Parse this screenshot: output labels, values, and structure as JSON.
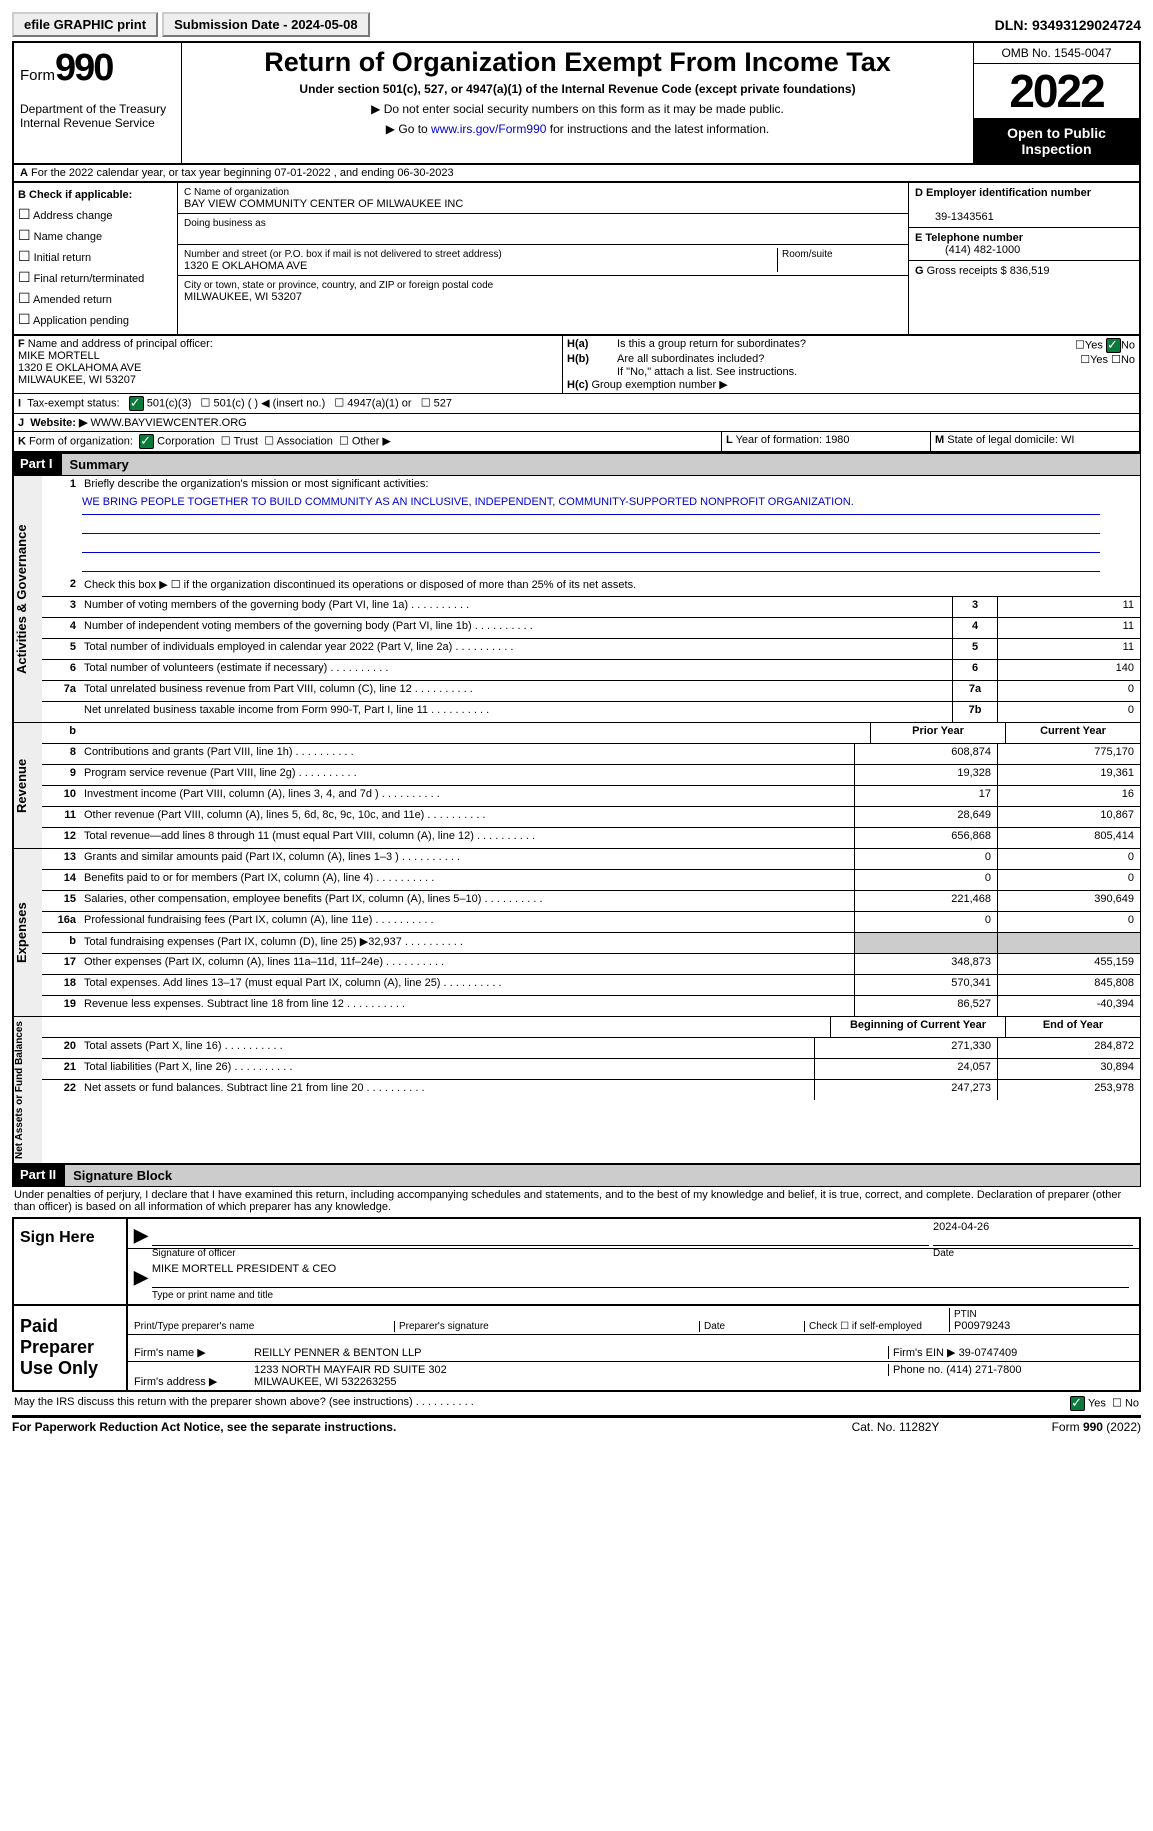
{
  "topbar": {
    "btn1": "efile GRAPHIC print",
    "btn2": "Submission Date - 2024-05-08",
    "dln": "DLN: 93493129024724"
  },
  "header": {
    "form_prefix": "Form",
    "form_num": "990",
    "dept": "Department of the Treasury\nInternal Revenue Service",
    "title": "Return of Organization Exempt From Income Tax",
    "sub": "Under section 501(c), 527, or 4947(a)(1) of the Internal Revenue Code (except private foundations)",
    "note1": "▶ Do not enter social security numbers on this form as it may be made public.",
    "note2_pre": "▶ Go to ",
    "note2_link": "www.irs.gov/Form990",
    "note2_post": " for instructions and the latest information.",
    "omb": "OMB No. 1545-0047",
    "year": "2022",
    "open": "Open to Public Inspection"
  },
  "period": {
    "a": "A",
    "text": " For the 2022 calendar year, or tax year beginning 07-01-2022   , and ending 06-30-2023"
  },
  "box_b": {
    "hdr": "B Check if applicable:",
    "items": [
      "Address change",
      "Name change",
      "Initial return",
      "Final return/terminated",
      "Amended return",
      "Application pending"
    ]
  },
  "box_c": {
    "name_label": "C Name of organization",
    "name": "BAY VIEW COMMUNITY CENTER OF MILWAUKEE INC",
    "dba_label": "Doing business as",
    "street_label": "Number and street (or P.O. box if mail is not delivered to street address)",
    "room_label": "Room/suite",
    "street": "1320 E OKLAHOMA AVE",
    "city_label": "City or town, state or province, country, and ZIP or foreign postal code",
    "city": "MILWAUKEE, WI  53207"
  },
  "box_d": {
    "label": "D Employer identification number",
    "val": "39-1343561"
  },
  "box_e": {
    "label": "E Telephone number",
    "val": "(414) 482-1000"
  },
  "box_g": {
    "label": "G",
    "text": "Gross receipts $ 836,519"
  },
  "box_f": {
    "label": "F",
    "text": "  Name and address of principal officer:",
    "name": "MIKE MORTELL",
    "addr1": "1320 E OKLAHOMA AVE",
    "addr2": "MILWAUKEE, WI  53207"
  },
  "box_h": {
    "ha": "H(a)",
    "ha_text": "Is this a group return for subordinates?",
    "yes": "Yes",
    "no": "No",
    "hb": "H(b)",
    "hb_text": "Are all subordinates included?",
    "hb_note": "If \"No,\" attach a list. See instructions.",
    "hc": "H(c)",
    "hc_text": "Group exemption number ▶"
  },
  "box_i": {
    "label": "I",
    "text": "Tax-exempt status:",
    "opts": [
      "501(c)(3)",
      "501(c) (  ) ◀ (insert no.)",
      "4947(a)(1) or",
      "527"
    ]
  },
  "box_j": {
    "label": "J",
    "text": "Website: ▶",
    "url": "WWW.BAYVIEWCENTER.ORG"
  },
  "box_k": {
    "label": "K",
    "text": "Form of organization:",
    "opts": [
      "Corporation",
      "Trust",
      "Association",
      "Other ▶"
    ]
  },
  "box_l": {
    "label": "L",
    "text": "Year of formation: 1980"
  },
  "box_m": {
    "label": "M",
    "text": "State of legal domicile: WI"
  },
  "part1": {
    "num": "Part I",
    "title": "Summary"
  },
  "summary": {
    "q1": {
      "n": "1",
      "t": "Briefly describe the organization's mission or most significant activities:",
      "mission": "WE BRING PEOPLE TOGETHER TO BUILD COMMUNITY AS AN INCLUSIVE, INDEPENDENT, COMMUNITY-SUPPORTED NONPROFIT ORGANIZATION."
    },
    "q2": {
      "n": "2",
      "t": "Check this box ▶ ☐ if the organization discontinued its operations or disposed of more than 25% of its net assets."
    },
    "lines_a": [
      {
        "n": "3",
        "t": "Number of voting members of the governing body (Part VI, line 1a)",
        "box": "3",
        "v": "11"
      },
      {
        "n": "4",
        "t": "Number of independent voting members of the governing body (Part VI, line 1b)",
        "box": "4",
        "v": "11"
      },
      {
        "n": "5",
        "t": "Total number of individuals employed in calendar year 2022 (Part V, line 2a)",
        "box": "5",
        "v": "11"
      },
      {
        "n": "6",
        "t": "Total number of volunteers (estimate if necessary)",
        "box": "6",
        "v": "140"
      },
      {
        "n": "7a",
        "t": "Total unrelated business revenue from Part VIII, column (C), line 12",
        "box": "7a",
        "v": "0"
      },
      {
        "n": "",
        "t": "Net unrelated business taxable income from Form 990-T, Part I, line 11",
        "box": "7b",
        "v": "0"
      }
    ],
    "col_hdr": {
      "b": "b",
      "prior": "Prior Year",
      "current": "Current Year"
    },
    "revenue": [
      {
        "n": "8",
        "t": "Contributions and grants (Part VIII, line 1h)",
        "p": "608,874",
        "c": "775,170"
      },
      {
        "n": "9",
        "t": "Program service revenue (Part VIII, line 2g)",
        "p": "19,328",
        "c": "19,361"
      },
      {
        "n": "10",
        "t": "Investment income (Part VIII, column (A), lines 3, 4, and 7d )",
        "p": "17",
        "c": "16"
      },
      {
        "n": "11",
        "t": "Other revenue (Part VIII, column (A), lines 5, 6d, 8c, 9c, 10c, and 11e)",
        "p": "28,649",
        "c": "10,867"
      },
      {
        "n": "12",
        "t": "Total revenue—add lines 8 through 11 (must equal Part VIII, column (A), line 12)",
        "p": "656,868",
        "c": "805,414"
      }
    ],
    "expenses": [
      {
        "n": "13",
        "t": "Grants and similar amounts paid (Part IX, column (A), lines 1–3 )",
        "p": "0",
        "c": "0"
      },
      {
        "n": "14",
        "t": "Benefits paid to or for members (Part IX, column (A), line 4)",
        "p": "0",
        "c": "0"
      },
      {
        "n": "15",
        "t": "Salaries, other compensation, employee benefits (Part IX, column (A), lines 5–10)",
        "p": "221,468",
        "c": "390,649"
      },
      {
        "n": "16a",
        "t": "Professional fundraising fees (Part IX, column (A), line 11e)",
        "p": "0",
        "c": "0"
      },
      {
        "n": "b",
        "t": "Total fundraising expenses (Part IX, column (D), line 25) ▶32,937",
        "p": "",
        "c": "",
        "grey": true
      },
      {
        "n": "17",
        "t": "Other expenses (Part IX, column (A), lines 11a–11d, 11f–24e)",
        "p": "348,873",
        "c": "455,159"
      },
      {
        "n": "18",
        "t": "Total expenses. Add lines 13–17 (must equal Part IX, column (A), line 25)",
        "p": "570,341",
        "c": "845,808"
      },
      {
        "n": "19",
        "t": "Revenue less expenses. Subtract line 18 from line 12",
        "p": "86,527",
        "c": "-40,394"
      }
    ],
    "net_hdr": {
      "b": "Beginning of Current Year",
      "e": "End of Year"
    },
    "net": [
      {
        "n": "20",
        "t": "Total assets (Part X, line 16)",
        "p": "271,330",
        "c": "284,872"
      },
      {
        "n": "21",
        "t": "Total liabilities (Part X, line 26)",
        "p": "24,057",
        "c": "30,894"
      },
      {
        "n": "22",
        "t": "Net assets or fund balances. Subtract line 21 from line 20",
        "p": "247,273",
        "c": "253,978"
      }
    ],
    "side_labels": {
      "ag": "Activities & Governance",
      "rev": "Revenue",
      "exp": "Expenses",
      "net": "Net Assets or Fund Balances"
    }
  },
  "part2": {
    "num": "Part II",
    "title": "Signature Block"
  },
  "sig": {
    "decl": "Under penalties of perjury, I declare that I have examined this return, including accompanying schedules and statements, and to the best of my knowledge and belief, it is true, correct, and complete. Declaration of preparer (other than officer) is based on all information of which preparer has any knowledge.",
    "sign_here": "Sign Here",
    "sig_officer": "Signature of officer",
    "date_label": "Date",
    "sig_date": "2024-04-26",
    "name_title": "MIKE MORTELL  PRESIDENT & CEO",
    "name_title_label": "Type or print name and title",
    "paid": "Paid Preparer Use Only",
    "prep_name_label": "Print/Type preparer's name",
    "prep_sig_label": "Preparer's signature",
    "check_self": "Check ☐ if self-employed",
    "ptin_label": "PTIN",
    "ptin": "P00979243",
    "firm_name_label": "Firm's name    ▶",
    "firm_name": "REILLY PENNER & BENTON LLP",
    "firm_ein_label": "Firm's EIN ▶",
    "firm_ein": "39-0747409",
    "firm_addr_label": "Firm's address ▶",
    "firm_addr1": "1233 NORTH MAYFAIR RD SUITE 302",
    "firm_addr2": "MILWAUKEE, WI  532263255",
    "phone_label": "Phone no.",
    "phone": "(414) 271-7800",
    "discuss": "May the IRS discuss this return with the preparer shown above? (see instructions)"
  },
  "footer": {
    "left": "For Paperwork Reduction Act Notice, see the separate instructions.",
    "mid": "Cat. No. 11282Y",
    "right": "Form 990 (2022)"
  }
}
